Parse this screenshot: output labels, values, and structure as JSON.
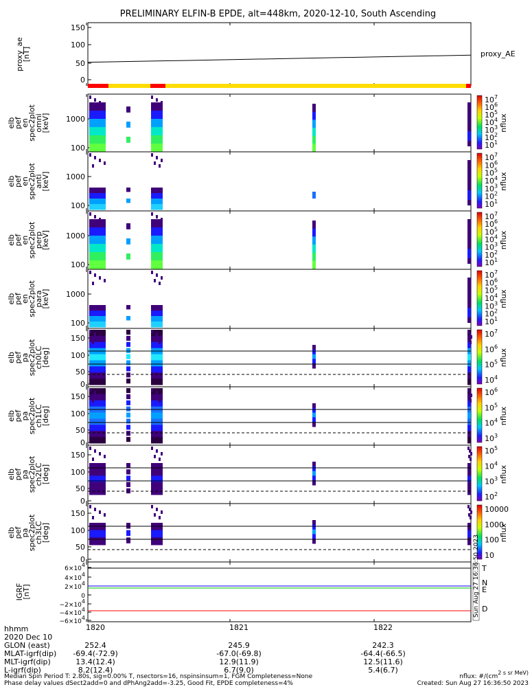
{
  "chart_data": {
    "type": "heatmap",
    "title": "PRELIMINARY ELFIN-B EPDE, alt=448km, 2020-12-10, South Ascending",
    "panels": [
      {
        "key": "proxy_ae",
        "type": "line",
        "ylabel": [
          "proxy_ae",
          "[nT]"
        ],
        "yticks": [
          "150",
          "100",
          "50",
          "0"
        ],
        "ylim": [
          -10,
          155
        ],
        "line_label": "proxy_AE",
        "line": [
          [
            0,
            47
          ],
          [
            1,
            68
          ]
        ]
      },
      {
        "key": "omni",
        "type": "heatmap",
        "ylabel": [
          "elb",
          "pef",
          "en",
          "spec2plot",
          "omni",
          "[keV]"
        ],
        "yticks": [
          "1000",
          "100"
        ],
        "colorbar_ticks": [
          "10^7",
          "10^6",
          "10^5",
          "10^4",
          "10^3",
          "10^2",
          "10^1"
        ],
        "colorbar_label": "nflux"
      },
      {
        "key": "anti",
        "type": "heatmap",
        "ylabel": [
          "elb",
          "pef",
          "en",
          "spec2plot",
          "anti",
          "[keV]"
        ],
        "yticks": [
          "1000",
          "100"
        ],
        "colorbar_ticks": [
          "10^7",
          "10^6",
          "10^5",
          "10^4",
          "10^3",
          "10^2",
          "10^1"
        ],
        "colorbar_label": "nflux"
      },
      {
        "key": "perp",
        "type": "heatmap",
        "ylabel": [
          "elb",
          "pef",
          "en",
          "spec2plot",
          "perp",
          "[keV]"
        ],
        "yticks": [
          "1000",
          "100"
        ],
        "colorbar_ticks": [
          "10^7",
          "10^6",
          "10^5",
          "10^4",
          "10^3",
          "10^2",
          "10^1"
        ],
        "colorbar_label": "nflux"
      },
      {
        "key": "para",
        "type": "heatmap",
        "ylabel": [
          "elb",
          "pef",
          "en",
          "spec2plot",
          "para",
          "[keV]"
        ],
        "yticks": [
          "1000",
          "100"
        ],
        "colorbar_ticks": [
          "10^7",
          "10^6",
          "10^5",
          "10^4",
          "10^3",
          "10^2",
          "10^1"
        ],
        "colorbar_label": "nflux"
      },
      {
        "key": "ch0LC",
        "type": "heatmap",
        "ylabel": [
          "elb",
          "pef",
          "pa",
          "spec2plot",
          "ch0LC",
          "[deg]"
        ],
        "yticks": [
          "150",
          "100",
          "50",
          "0"
        ],
        "colorbar_ticks": [
          "10^7",
          "10^6",
          "10^5",
          "10^4"
        ],
        "colorbar_label": "nflux"
      },
      {
        "key": "ch1LC",
        "type": "heatmap",
        "ylabel": [
          "elb",
          "pef",
          "pa",
          "spec2plot",
          "ch1LC",
          "[deg]"
        ],
        "yticks": [
          "150",
          "100",
          "50",
          "0"
        ],
        "colorbar_ticks": [
          "10^6",
          "10^5",
          "10^4",
          "10^3"
        ],
        "colorbar_label": "nflux"
      },
      {
        "key": "ch2LC",
        "type": "heatmap",
        "ylabel": [
          "elb",
          "pef",
          "pa",
          "spec2plot",
          "ch2LC",
          "[deg]"
        ],
        "yticks": [
          "150",
          "100",
          "50",
          "0"
        ],
        "colorbar_ticks": [
          "10^5",
          "10^4",
          "10^3",
          "10^2"
        ],
        "colorbar_label": "nflux"
      },
      {
        "key": "ch3LC",
        "type": "heatmap",
        "ylabel": [
          "elb",
          "pef",
          "pa",
          "spec2plot",
          "ch3LC",
          "[deg]"
        ],
        "yticks": [
          "150",
          "100",
          "50",
          "0"
        ],
        "colorbar_ticks": [
          "10000",
          "1000",
          "100",
          "10"
        ],
        "colorbar_label": "nflux"
      },
      {
        "key": "igrf",
        "type": "line",
        "ylabel": [
          "IGRF",
          "[nT]"
        ],
        "yticks": [
          "6×10^4",
          "4×10^4",
          "2×10^4",
          "0",
          "−2×10^4",
          "−4×10^4",
          "−6×10^4"
        ],
        "series": [
          {
            "name": "T",
            "color": "#000000"
          },
          {
            "name": "N",
            "color": "#0000ff"
          },
          {
            "name": "E",
            "color": "#00c000"
          },
          {
            "name": "D",
            "color": "#ff0000"
          }
        ]
      }
    ],
    "x_ticks": [
      "1820",
      "1821",
      "1822"
    ],
    "x_rows": [
      {
        "label": "hhmm",
        "values": [
          "",
          "",
          ""
        ]
      },
      {
        "label": "2020 Dec 10",
        "values": [
          "",
          "",
          ""
        ]
      },
      {
        "label": "GLON (east)",
        "values": [
          "252.4",
          "245.9",
          "242.3"
        ]
      },
      {
        "label": "MLAT-igrf(dip)",
        "values": [
          "-69.4(-72.9)",
          "-67.0(-69.8)",
          "-64.4(-66.5)"
        ]
      },
      {
        "label": "MLT-igrf(dip)",
        "values": [
          "13.4(12.4)",
          "12.9(11.9)",
          "12.5(11.6)"
        ]
      },
      {
        "label": "L-igrf(dip)",
        "values": [
          "8.2(12.4)",
          "6.7(9.0)",
          "5.4(6.7)"
        ]
      }
    ],
    "footer": [
      "Median Spin Period T: 2.80s, sig=0.00% T, nsectors=16, nspinsinsum=1, FGM Completeness=None",
      "Phase delay values dSect2add=0 and dPhAng2add=-3.25, Good Fit, EPDE completeness=4%"
    ],
    "footer_right": [
      "nflux: #/(cm^2 s sr MeV)",
      "Created: Sun Aug 27 16:36:50 2023"
    ],
    "side_stamp": "Sun Aug 27 16:36:50 2023",
    "colors": {
      "red_bar": "#ff0000",
      "yellow_bar": "#ffdd00"
    }
  }
}
